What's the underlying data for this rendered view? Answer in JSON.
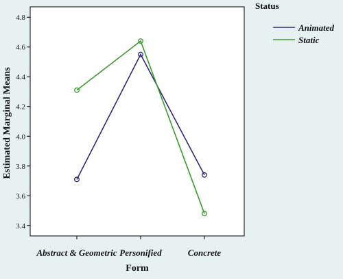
{
  "chart_data": {
    "type": "line",
    "title": "",
    "xlabel": "Form",
    "ylabel": "Estimated Marginal Means",
    "categories": [
      "Abstract & Geometric",
      "Personified",
      "Concrete"
    ],
    "ylim": [
      3.33,
      4.87
    ],
    "yticks": [
      "3.4",
      "3.6",
      "3.8",
      "4.0",
      "4.2",
      "4.4",
      "4.6",
      "4.8"
    ],
    "grid": false,
    "legend": {
      "title": "Status",
      "placement": "top-right-outside"
    },
    "series": [
      {
        "name": "Animated",
        "color": "#2b2a78",
        "values": [
          3.71,
          4.55,
          3.74
        ]
      },
      {
        "name": "Static",
        "color": "#3a9a2c",
        "values": [
          4.31,
          4.64,
          3.48
        ]
      }
    ]
  }
}
